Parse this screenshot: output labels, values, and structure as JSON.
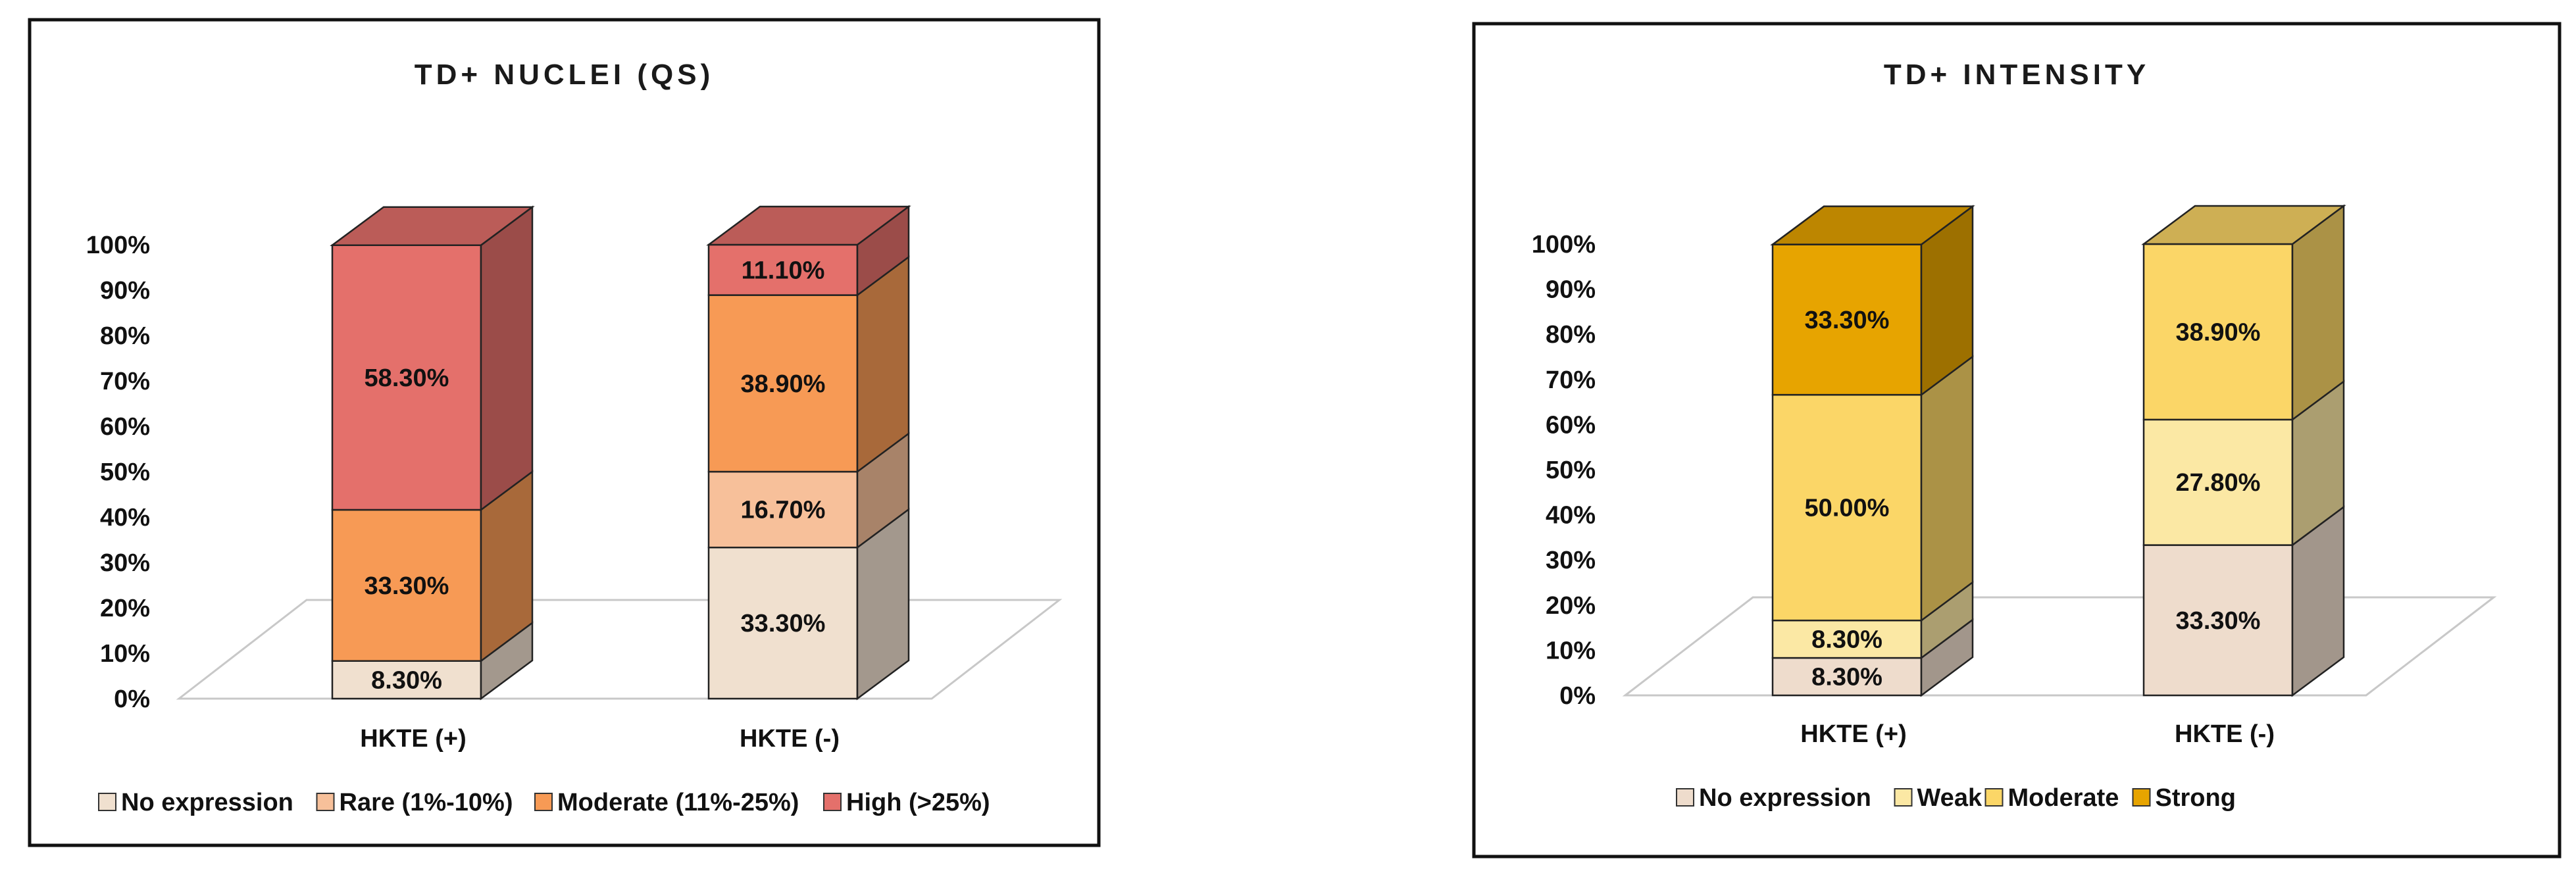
{
  "chart_data": [
    {
      "type": "bar",
      "stacked": true,
      "three_d": true,
      "title": "TD+ NUCLEI (QS)",
      "categories": [
        "HKTE (+)",
        "HKTE (-)"
      ],
      "y_ticks": [
        "0%",
        "10%",
        "20%",
        "30%",
        "40%",
        "50%",
        "60%",
        "70%",
        "80%",
        "90%",
        "100%"
      ],
      "ylim": [
        0,
        100
      ],
      "legend_position": "bottom",
      "series": [
        {
          "name": "No expression",
          "values": [
            8.3,
            33.3
          ],
          "labels": [
            "8.30%",
            "33.30%"
          ],
          "color": "#f0e0cf"
        },
        {
          "name": "Rare (1%-10%)",
          "values": [
            0,
            16.7
          ],
          "labels": [
            "",
            "16.70%"
          ],
          "color": "#f7c09a"
        },
        {
          "name": "Moderate (11%-25%)",
          "values": [
            33.3,
            38.9
          ],
          "labels": [
            "33.30%",
            "38.90%"
          ],
          "color": "#f79a55"
        },
        {
          "name": "High (>25%)",
          "values": [
            58.3,
            11.1
          ],
          "labels": [
            "58.30%",
            "11.10%"
          ],
          "color": "#e4706b"
        }
      ]
    },
    {
      "type": "bar",
      "stacked": true,
      "three_d": true,
      "title": "TD+ INTENSITY",
      "categories": [
        "HKTE (+)",
        "HKTE (-)"
      ],
      "y_ticks": [
        "0%",
        "10%",
        "20%",
        "30%",
        "40%",
        "50%",
        "60%",
        "70%",
        "80%",
        "90%",
        "100%"
      ],
      "ylim": [
        0,
        100
      ],
      "legend_position": "bottom",
      "series": [
        {
          "name": "No expression",
          "values": [
            8.3,
            33.3
          ],
          "labels": [
            "8.30%",
            "33.30%"
          ],
          "color": "#eedccc"
        },
        {
          "name": "Weak",
          "values": [
            8.3,
            27.8
          ],
          "labels": [
            "8.30%",
            "27.80%"
          ],
          "color": "#fbe8a4"
        },
        {
          "name": "Moderate",
          "values": [
            50.0,
            38.9
          ],
          "labels": [
            "50.00%",
            "38.90%"
          ],
          "color": "#fbd667"
        },
        {
          "name": "Strong",
          "values": [
            33.3,
            0
          ],
          "labels": [
            "33.30%",
            ""
          ],
          "color": "#e7a400"
        }
      ]
    }
  ]
}
